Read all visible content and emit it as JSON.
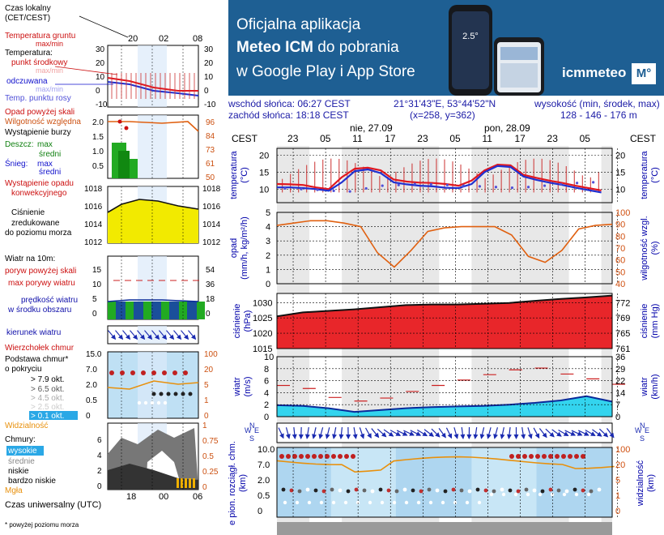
{
  "banner": {
    "line1_a": "Oficjalna aplikacja",
    "line2_b": "Meteo ICM",
    "line2_a": " do pobrania",
    "line3_a": "w Google Play i App Store",
    "brand": "icmmeteo",
    "brand_mark": "M°",
    "phone_reading": "2.5°"
  },
  "header": {
    "sunrise": "wschód słońca: 06:27 CEST",
    "sunset": "zachód słońca: 18:18 CEST",
    "coords": "21°31'43\"E, 53°44'52\"N",
    "grid": "(x=258,  y=362)",
    "elev_label": "wysokość (min, środek, max)",
    "elev_vals": "128 - 146 - 176 m"
  },
  "legend": {
    "timezone_a": "Czas lokalny",
    "timezone_b": "(CET/CEST)",
    "time_ticks": [
      "20",
      "02",
      "08"
    ],
    "t_ground_a": "Temperatura gruntu",
    "t_ground_b": "max/min",
    "temp_label": "Temperatura:",
    "temp_mid": "punkt środkowy",
    "temp_maxmin": "max/min",
    "temp_feels": "odczuwana",
    "temp_feels_maxmin": "max/min",
    "temp_dew": "Temp. punktu rosy",
    "temp_ticks": [
      "30",
      "20",
      "10",
      "0",
      "-10"
    ],
    "precip_above": "Opad powyżej skali",
    "rh": "Wilgotność względna",
    "storm": "Wystąpienie burzy",
    "rain": "Deszcz:",
    "rain_max": "max",
    "rain_avg": "średni",
    "snow": "Śnieg:",
    "snow_max": "max",
    "snow_avg": "średni",
    "precip_occ_a": "Wystąpienie opadu",
    "precip_occ_b": "konwekcyjnego",
    "precip_ticks": [
      "2.0",
      "1.5",
      "1.0",
      "0.5"
    ],
    "rh_ticks": [
      "96",
      "84",
      "73",
      "61",
      "50"
    ],
    "pressure_a": "Ciśnienie",
    "pressure_b": "zredukowane",
    "pressure_c": "do poziomu morza",
    "pressure_ticks": [
      "1018",
      "1016",
      "1014",
      "1012"
    ],
    "wind_label": "Wiatr na 10m:",
    "wind_gust_above": "poryw powyżej skali",
    "wind_gust_max": "max porywy wiatru",
    "wind_speed_a": "prędkość wiatru",
    "wind_speed_b": "w środku obszaru",
    "wind_ticks_l": [
      "15",
      "10",
      "5",
      "0"
    ],
    "wind_ticks_r": [
      "54",
      "36",
      "18",
      "0"
    ],
    "wind_dir": "kierunek wiatru",
    "cloud_top": "Wierzchołek chmur",
    "cloud_base_a": "Podstawa chmur*",
    "cloud_base_b": "o pokryciu",
    "okt_79": "> 7.9 okt.",
    "okt_65": "> 6.5 okt.",
    "okt_45": "> 4.5 okt.",
    "okt_25": "> 2.5 okt.",
    "okt_01": "> 0.1 okt.",
    "cloud_ticks": [
      "15.0",
      "7.0",
      "2.0",
      "0.5",
      "0"
    ],
    "cloud_ticks_r": [
      "100",
      "20",
      "5",
      "1",
      "0"
    ],
    "visibility": "Widzialność",
    "clouds": "Chmury:",
    "c_high": "wysokie",
    "c_mid": "średnie",
    "c_low": "niskie",
    "c_vlow": "bardzo niskie",
    "fog": "Mgła",
    "cloud_cov_ticks": [
      "6",
      "4",
      "2",
      "0"
    ],
    "cloud_cov_ticks_r": [
      "1",
      "0.75",
      "0.5",
      "0.25",
      "0"
    ],
    "utc": "Czas uniwersalny (UTC)",
    "utc_ticks": [
      "18",
      "00",
      "06"
    ],
    "footnote": "* powyżej poziomu morza"
  },
  "main": {
    "tz_left": "CEST",
    "tz_right": "CEST",
    "day1": "nie, 27.09",
    "day2": "pon, 28.09",
    "hour_ticks": [
      "23",
      "05",
      "11",
      "17",
      "23",
      "05",
      "11",
      "17",
      "23",
      "05"
    ],
    "temp_label_l_a": "temperatura",
    "temp_label_l_b": "(°C)",
    "temp_label_r_a": "temperatura",
    "temp_label_r_b": "(°C)",
    "precip_label_a": "opad",
    "precip_label_b": "(mm/h, kg/m²/h)",
    "rh_label_a": "wilgotność wzgl.",
    "rh_label_b": "(%)",
    "press_label_a": "ciśnienie",
    "press_label_b": "(hPa)",
    "press_label_r_a": "ciśnienie",
    "press_label_r_b": "(mm Hg)",
    "wind_label_l_a": "wiatr",
    "wind_label_l_b": "(m/s)",
    "wind_label_r_a": "wiatr",
    "wind_label_r_b": "(km/h)",
    "cloud_label_l": "e pion. rozciągł. chm.",
    "cloud_label_l_b": "(km)",
    "vis_label_a": "widzialność",
    "vis_label_b": "(km)",
    "compass_w": "W",
    "compass_n": "N",
    "compass_e": "E",
    "compass_s": "S"
  },
  "chart_data": [
    {
      "type": "line",
      "title": "temperatura",
      "ylabel": "temperatura (°C)",
      "ylim": [
        6,
        22
      ],
      "y_ticks": [
        "20",
        "15",
        "10"
      ],
      "x": [
        0,
        3,
        6,
        9,
        12,
        15,
        18,
        21,
        24,
        27,
        30,
        33,
        36,
        39,
        42,
        45,
        48,
        51,
        54,
        57
      ],
      "series": [
        {
          "values": [
            11.5,
            11.4,
            11.2,
            10.5,
            10.0,
            13.5,
            16.0,
            16.3,
            15.5,
            12.8,
            12.2,
            11.9,
            11.8,
            11.5,
            11.0,
            12.5,
            15.5,
            17.2,
            17.0,
            14.2
          ]
        },
        {
          "values": [
            10.5,
            10.5,
            10.3,
            10.0,
            9.5,
            12.0,
            15.3,
            15.8,
            14.7,
            12.0,
            11.4,
            11.0,
            10.8,
            10.4,
            10.3,
            11.5,
            15.0,
            16.8,
            16.5,
            13.7
          ]
        },
        {
          "values": [
            10.2,
            10.0,
            9.8,
            9.5,
            9.3,
            10.2,
            11.0,
            11.2,
            11.5,
            11.4,
            11.2,
            11.0,
            10.8,
            10.6,
            10.4,
            10.6,
            11.0,
            11.4,
            11.8,
            12.0
          ]
        }
      ],
      "tail_values": [
        13.3,
        12.5,
        11.8,
        11.0,
        10.3,
        9.6
      ]
    },
    {
      "type": "line",
      "title": "wilgotność",
      "ylabel": "wilgotność wzgl. (%)",
      "ylim": [
        40,
        100
      ],
      "left_ticks": [
        "5",
        "4",
        "3",
        "2",
        "1",
        "0"
      ],
      "right_ticks": [
        "100",
        "90",
        "80",
        "70",
        "60",
        "50",
        "40"
      ],
      "x": [
        0,
        4,
        8,
        12,
        16,
        20,
        24,
        28,
        32,
        36,
        40,
        44,
        48,
        52,
        56,
        60,
        64,
        68,
        72,
        76,
        80
      ],
      "values": [
        89,
        91,
        93,
        93,
        91,
        88,
        66,
        54,
        68,
        84,
        87,
        88,
        88,
        88,
        81,
        63,
        58,
        68,
        86,
        89,
        90
      ]
    },
    {
      "type": "area",
      "title": "ciśnienie",
      "ylabel": "ciśnienie (hPa)",
      "ylim": [
        1015,
        1033
      ],
      "left_ticks": [
        "1030",
        "1025",
        "1020",
        "1015"
      ],
      "right_ticks": [
        "772",
        "769",
        "765",
        "761"
      ],
      "x": [
        0,
        6,
        12,
        18,
        24,
        30,
        36,
        42,
        48,
        54,
        60,
        66,
        72,
        78
      ],
      "values": [
        1025.5,
        1026.8,
        1027.3,
        1027.8,
        1028.5,
        1029.2,
        1029.4,
        1029.4,
        1029.6,
        1029.9,
        1030.6,
        1031.2,
        1031.7,
        1032.3
      ]
    },
    {
      "type": "line",
      "title": "wiatr",
      "ylabel": "wiatr (m/s)",
      "ylim": [
        0,
        10
      ],
      "left_ticks": [
        "10",
        "8",
        "6",
        "4",
        "2",
        "0"
      ],
      "right_ticks": [
        "36",
        "29",
        "22",
        "14",
        "7",
        "0"
      ],
      "x": [
        0,
        6,
        12,
        18,
        24,
        30,
        36,
        42,
        48,
        54,
        60,
        66,
        72,
        78
      ],
      "series": [
        {
          "values": [
            1.9,
            1.8,
            1.4,
            0.8,
            1.1,
            1.4,
            1.6,
            1.7,
            1.8,
            2.0,
            2.3,
            2.7,
            3.4,
            2.5
          ]
        },
        {
          "values": [
            5.2,
            4.7,
            3.2,
            2.6,
            3.1,
            4.2,
            5.2,
            6.1,
            7.0,
            7.8,
            8.1,
            7.1,
            6.3,
            5.4
          ]
        }
      ]
    },
    {
      "type": "scatter",
      "title": "chmury",
      "ylabel": "pion. rozciągł. chm. (km)",
      "left_ticks": [
        "10.0",
        "7.0",
        "2.0",
        "0.5",
        "0"
      ],
      "right_ticks": [
        "100",
        "20",
        "5",
        "1",
        "0"
      ]
    }
  ]
}
